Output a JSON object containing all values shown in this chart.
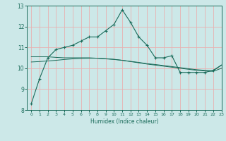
{
  "xlabel": "Humidex (Indice chaleur)",
  "bg_color": "#cce8e8",
  "grid_color": "#e8b0b0",
  "line_color": "#1a6b5a",
  "x_values": [
    0,
    1,
    2,
    3,
    4,
    5,
    6,
    7,
    8,
    9,
    10,
    11,
    12,
    13,
    14,
    15,
    16,
    17,
    18,
    19,
    20,
    21,
    22,
    23
  ],
  "line1": [
    8.3,
    9.5,
    10.5,
    10.9,
    11.0,
    11.1,
    11.3,
    11.5,
    11.5,
    11.8,
    12.1,
    12.8,
    12.2,
    11.5,
    11.1,
    10.5,
    10.5,
    10.6,
    9.8,
    9.8,
    9.8,
    9.8,
    9.9,
    10.15
  ],
  "line2": [
    10.55,
    10.55,
    10.55,
    10.52,
    10.5,
    10.5,
    10.5,
    10.5,
    10.48,
    10.45,
    10.42,
    10.38,
    10.33,
    10.28,
    10.22,
    10.18,
    10.13,
    10.08,
    10.03,
    9.98,
    9.93,
    9.9,
    9.88,
    10.15
  ],
  "line3": [
    10.3,
    10.32,
    10.35,
    10.38,
    10.42,
    10.45,
    10.47,
    10.48,
    10.48,
    10.46,
    10.43,
    10.38,
    10.32,
    10.26,
    10.2,
    10.15,
    10.1,
    10.05,
    10.0,
    9.95,
    9.9,
    9.87,
    9.85,
    10.0
  ],
  "ylim": [
    8,
    13
  ],
  "xlim": [
    -0.5,
    23
  ],
  "yticks": [
    8,
    9,
    10,
    11,
    12,
    13
  ],
  "xticks": [
    0,
    1,
    2,
    3,
    4,
    5,
    6,
    7,
    8,
    9,
    10,
    11,
    12,
    13,
    14,
    15,
    16,
    17,
    18,
    19,
    20,
    21,
    22,
    23
  ]
}
